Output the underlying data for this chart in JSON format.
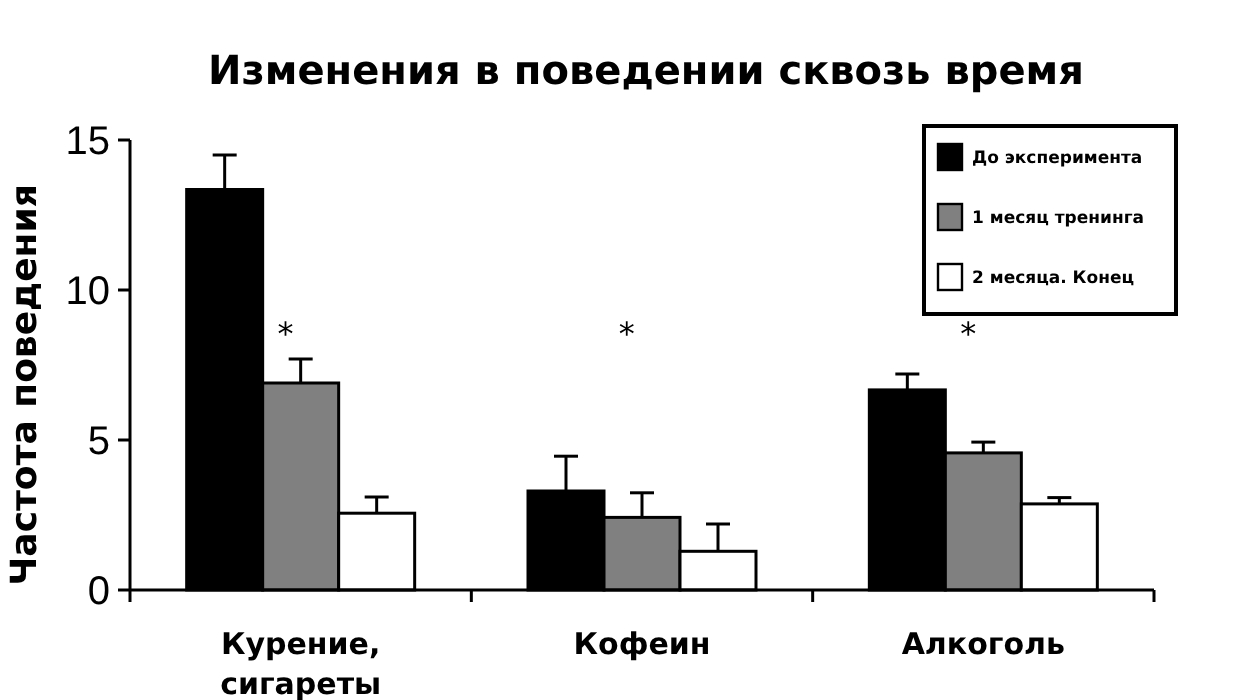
{
  "chart_data": {
    "type": "bar",
    "title": "Изменения в поведении сквозь время",
    "ylabel": "Частота поведения",
    "categories": [
      "Курение, сигареты",
      "Кофеин",
      "Алкоголь"
    ],
    "series": [
      {
        "name": "До эксперимента",
        "color": "#000000",
        "values": [
          13.35,
          3.3,
          6.67
        ],
        "errors": [
          [
            13.35,
            14.5
          ],
          [
            3.3,
            4.46
          ],
          [
            6.67,
            7.2
          ]
        ]
      },
      {
        "name": "1 месяц тренинга",
        "color": "#808080",
        "values": [
          6.9,
          2.42,
          4.57
        ],
        "errors": [
          [
            6.9,
            7.7
          ],
          [
            2.42,
            3.24
          ],
          [
            4.57,
            4.93
          ]
        ]
      },
      {
        "name": "2 месяца. Конец",
        "color": "#ffffff",
        "values": [
          2.56,
          1.29,
          2.87
        ],
        "errors": [
          [
            2.56,
            3.1
          ],
          [
            1.29,
            2.2
          ],
          [
            2.87,
            3.08
          ]
        ]
      }
    ],
    "ylim": [
      0,
      15
    ],
    "yticks": [
      0,
      5,
      10,
      15
    ],
    "legend": "top right",
    "grid": false,
    "annotations": [
      "*",
      "*",
      "*"
    ]
  }
}
